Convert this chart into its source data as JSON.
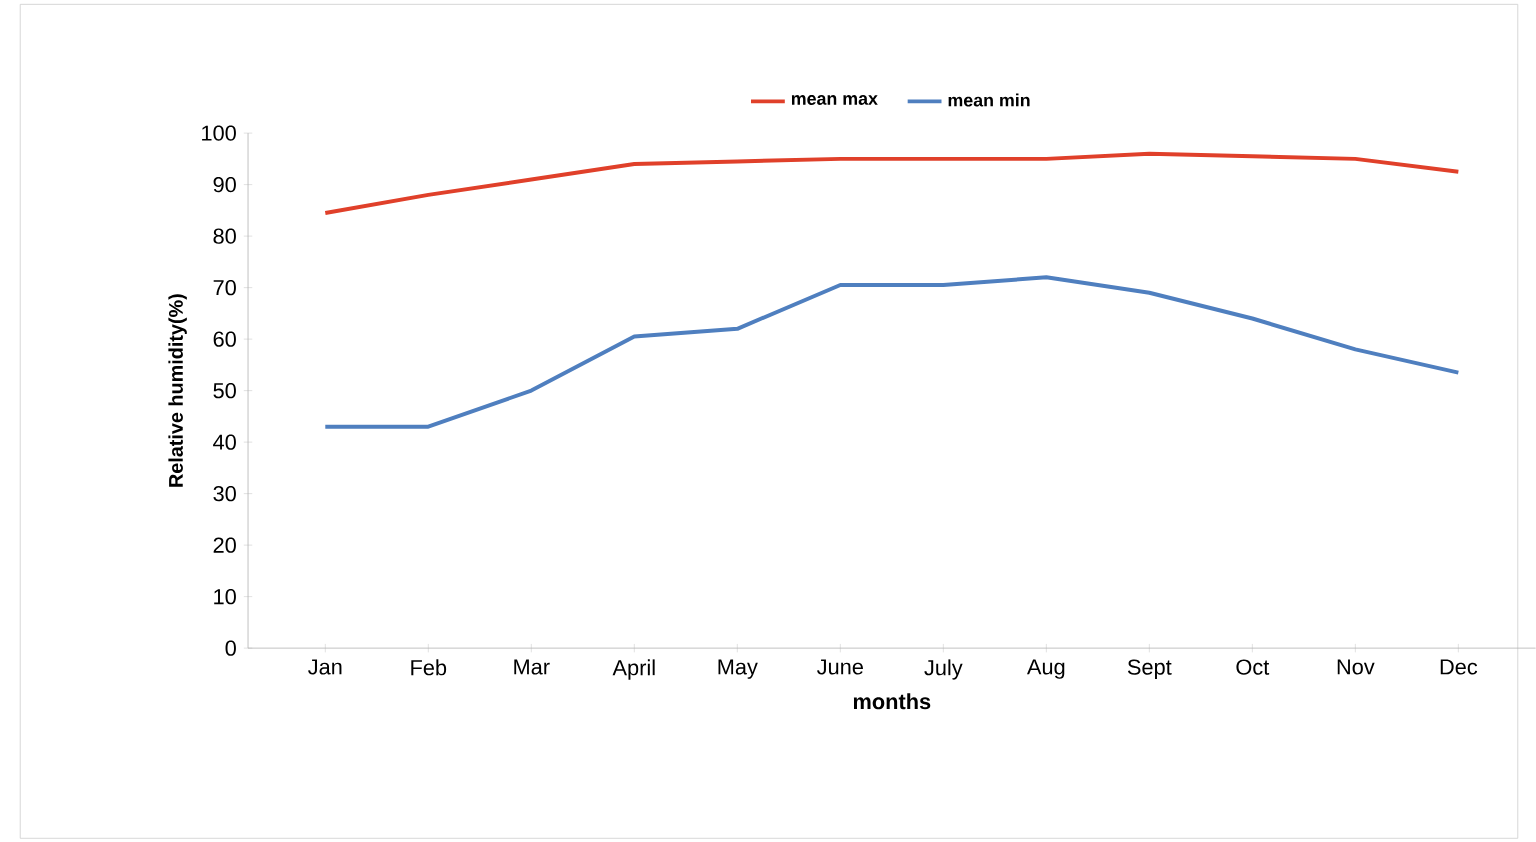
{
  "chart_data": {
    "type": "line",
    "xlabel": "months",
    "ylabel": "Relative humidity(%)",
    "categories": [
      "Jan",
      "Feb",
      "Mar",
      "April",
      "May",
      "June",
      "July",
      "Aug",
      "Sept",
      "Oct",
      "Nov",
      "Dec"
    ],
    "series": [
      {
        "name": "mean max",
        "color": "#e0402a",
        "values": [
          84.5,
          88,
          91,
          94,
          94.5,
          95,
          95,
          95,
          96,
          95.5,
          95,
          92.5
        ]
      },
      {
        "name": "mean min",
        "color": "#4f7fbf",
        "values": [
          43,
          43,
          50,
          60.5,
          62,
          70.5,
          70.5,
          72,
          69,
          64,
          58,
          53.5
        ]
      }
    ],
    "ylim": [
      0,
      100
    ],
    "yticks": [
      0,
      10,
      20,
      30,
      40,
      50,
      60,
      70,
      80,
      90,
      100
    ],
    "legend": "top",
    "grid": false,
    "marker": "none"
  }
}
